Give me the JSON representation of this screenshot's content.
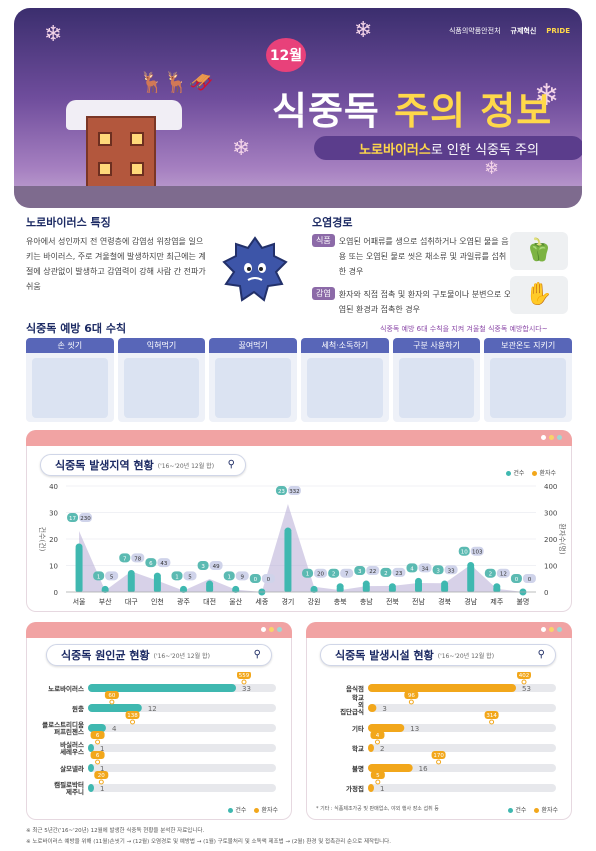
{
  "header": {
    "month_badge": "12월",
    "title_part1": "식중독 ",
    "title_part2": "주의 정보",
    "subtitle_strong": "노로바이러스",
    "subtitle_rest": "로 인한 식중독 주의",
    "org1": "식품의약품안전처",
    "org2": "규제혁신",
    "org3": "PRIDE"
  },
  "norovirus": {
    "heading": "노로바이러스 특징",
    "text": "유아에서 성인까지 전 연령층에 감염성 위장염을 일으키는 바이러스, 주로 겨울철에 발생하지만 최근에는 계절에 상관없이 발생하고 감염력이 강해 사람 간 전파가 쉬움"
  },
  "contamination": {
    "heading": "오염경로",
    "food_tag": "식품",
    "food_text": "오염된 어패류를 생으로 섭취하거나 오염된 물을 음용 또는 오염된 물로 씻은 채소류 및 과일류를 섭취한 경우",
    "infection_tag": "감염",
    "infection_text": "환자와 직접 접촉 및 환자의 구토물이나 분변으로 오염된 환경과 접촉한 경우"
  },
  "prevention": {
    "heading": "식중독 예방 6대 수칙",
    "slogan": "식중독 예방 6대 수칙을 지켜 겨울철 식중독 예방합시다~",
    "tips": [
      "손 씻기",
      "익혀먹기",
      "끓여먹기",
      "세척·소독하기",
      "구분 사용하기",
      "보관온도 지키기"
    ]
  },
  "legend": {
    "cases": "건수",
    "patients": "환자수"
  },
  "region_chart": {
    "title": "식중독 발생지역 현황",
    "period": "('16~'20년 12월 합)",
    "y_left_label": "건수(건)",
    "y_right_label": "환자수(명)"
  },
  "cause_chart": {
    "title": "식중독 원인균 현황",
    "period": "('16~'20년 12월 합)"
  },
  "facility_chart": {
    "title": "식중독 발생시설 현황",
    "period": "('16~'20년 12월 합)",
    "note": "* 기타 : 식품제조가공 및 판매업소, 야외 행사 장소 섭취 등"
  },
  "footnotes": [
    "※ 최근 5년간('16~'20년) 12월에 발생한 식중독 현황을 분석한 자료입니다.",
    "※ 노로바이러스 예방을 위해 (11월)손씻기 → (12월) 오염경로 및 예방법 → (1월) 구토물처리 및 소독액 제조법 → (2월) 환경 및 접촉관리 순으로 제작됩니다."
  ],
  "colors": {
    "cases": "#3fb8b0",
    "patients": "#f2a71b",
    "accent": "#e8417a",
    "navy": "#1d2b64"
  },
  "chart_data": [
    {
      "type": "bar",
      "title": "식중독 발생지역 현황",
      "categories": [
        "서울",
        "부산",
        "대구",
        "인천",
        "광주",
        "대전",
        "울산",
        "세종",
        "경기",
        "강원",
        "충북",
        "충남",
        "전북",
        "전남",
        "경북",
        "경남",
        "제주",
        "불명"
      ],
      "series": [
        {
          "name": "건수",
          "values": [
            17,
            1,
            7,
            6,
            1,
            3,
            1,
            0,
            23,
            1,
            2,
            3,
            2,
            4,
            3,
            10,
            2,
            0
          ]
        },
        {
          "name": "환자수",
          "values": [
            230,
            5,
            78,
            43,
            5,
            49,
            9,
            0,
            332,
            20,
            7,
            22,
            23,
            34,
            33,
            103,
            12,
            0
          ]
        }
      ],
      "ylabel": "건수(건)",
      "y2label": "환자수(명)",
      "ylim": [
        0,
        40
      ],
      "y2lim": [
        0,
        400
      ],
      "yticks": [
        0,
        10,
        20,
        30,
        40
      ],
      "y2ticks": [
        0,
        100,
        200,
        300,
        400
      ]
    },
    {
      "type": "bar",
      "title": "식중독 원인균 현황",
      "categories": [
        "노로바이러스",
        "원충",
        "클로스트리디움 퍼프린젠스",
        "바실러스 세레우스",
        "살모넬라",
        "캠필로박터 제주니"
      ],
      "series": [
        {
          "name": "건수",
          "values": [
            33,
            12,
            4,
            1,
            1,
            1
          ]
        },
        {
          "name": "환자수",
          "values": [
            559,
            60,
            138,
            6,
            6,
            20
          ]
        }
      ]
    },
    {
      "type": "bar",
      "title": "식중독 발생시설 현황",
      "categories": [
        "음식점",
        "학교 외 집단급식",
        "기타",
        "학교",
        "불명",
        "가정집"
      ],
      "series": [
        {
          "name": "건수",
          "values": [
            53,
            3,
            13,
            2,
            16,
            1
          ]
        },
        {
          "name": "환자수",
          "values": [
            402,
            96,
            314,
            4,
            170,
            5
          ]
        }
      ]
    }
  ]
}
